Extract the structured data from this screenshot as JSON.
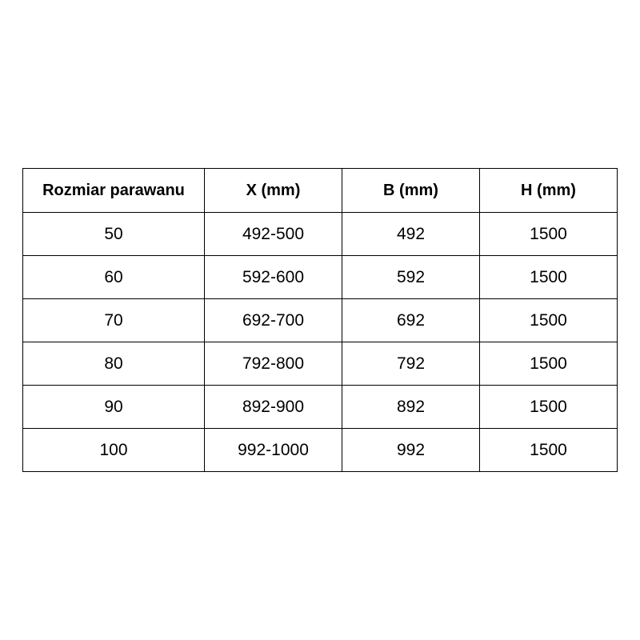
{
  "table": {
    "headers": [
      "Rozmiar parawanu",
      "X (mm)",
      "B (mm)",
      "H (mm)"
    ],
    "rows": [
      [
        "50",
        "492-500",
        "492",
        "1500"
      ],
      [
        "60",
        "592-600",
        "592",
        "1500"
      ],
      [
        "70",
        "692-700",
        "692",
        "1500"
      ],
      [
        "80",
        "792-800",
        "792",
        "1500"
      ],
      [
        "90",
        "892-900",
        "892",
        "1500"
      ],
      [
        "100",
        "992-1000",
        "992",
        "1500"
      ]
    ]
  }
}
